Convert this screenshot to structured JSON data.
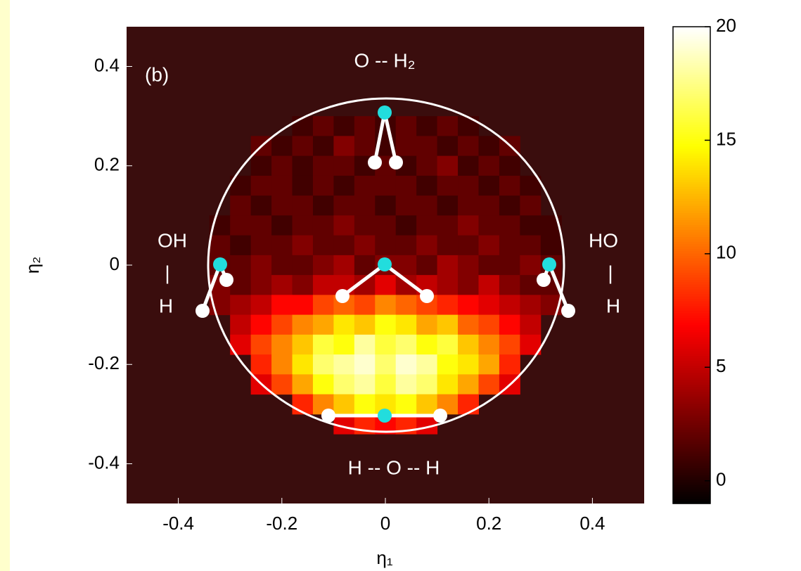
{
  "chart_data": {
    "type": "heatmap",
    "xlabel": "η₁",
    "ylabel": "η₂",
    "xlim": [
      -0.5,
      0.5
    ],
    "ylim": [
      -0.48,
      0.48
    ],
    "xticks": [
      -0.4,
      -0.2,
      0,
      0.2,
      0.4
    ],
    "yticks": [
      -0.4,
      -0.2,
      0,
      0.2,
      0.4
    ],
    "x": [
      -0.32,
      -0.28,
      -0.24,
      -0.2,
      -0.16,
      -0.12,
      -0.08,
      -0.04,
      0,
      0.04,
      0.08,
      0.12,
      0.16,
      0.2,
      0.24,
      0.28,
      0.32
    ],
    "y": [
      0.28,
      0.24,
      0.2,
      0.16,
      0.12,
      0.08,
      0.04,
      0,
      -0.04,
      -0.08,
      -0.12,
      -0.16,
      -0.2,
      -0.24,
      -0.28,
      -0.32
    ],
    "z": [
      [
        null,
        null,
        null,
        null,
        1,
        2,
        1,
        2,
        1,
        2,
        1,
        2,
        1,
        null,
        null,
        null,
        null
      ],
      [
        null,
        null,
        2,
        1,
        2,
        1,
        3,
        2,
        1,
        2,
        2,
        1,
        2,
        1,
        2,
        null,
        null
      ],
      [
        null,
        null,
        1,
        2,
        1,
        2,
        2,
        1,
        2,
        1,
        2,
        3,
        1,
        2,
        1,
        null,
        null
      ],
      [
        null,
        1,
        2,
        2,
        1,
        2,
        1,
        2,
        2,
        2,
        1,
        2,
        2,
        1,
        2,
        1,
        null
      ],
      [
        null,
        2,
        1,
        2,
        2,
        1,
        2,
        2,
        1,
        2,
        2,
        1,
        2,
        2,
        1,
        2,
        null
      ],
      [
        1,
        2,
        2,
        1,
        2,
        2,
        3,
        2,
        2,
        1,
        2,
        2,
        3,
        2,
        2,
        1,
        1
      ],
      [
        2,
        1,
        2,
        2,
        3,
        2,
        2,
        3,
        2,
        2,
        3,
        2,
        2,
        3,
        2,
        2,
        1
      ],
      [
        2,
        2,
        3,
        2,
        2,
        3,
        4,
        2,
        3,
        3,
        2,
        4,
        3,
        2,
        2,
        3,
        2
      ],
      [
        3,
        2,
        3,
        4,
        3,
        5,
        5,
        4,
        6,
        4,
        5,
        4,
        3,
        5,
        3,
        2,
        2
      ],
      [
        3,
        4,
        5,
        7,
        7,
        9,
        10,
        9,
        11,
        10,
        9,
        8,
        7,
        6,
        5,
        4,
        3
      ],
      [
        null,
        5,
        7,
        9,
        11,
        12,
        14,
        13,
        15,
        14,
        12,
        13,
        10,
        9,
        7,
        5,
        null
      ],
      [
        null,
        6,
        9,
        11,
        13,
        16,
        15,
        18,
        16,
        17,
        15,
        16,
        13,
        11,
        9,
        6,
        null
      ],
      [
        null,
        null,
        8,
        11,
        14,
        17,
        18,
        19,
        17,
        19,
        18,
        15,
        14,
        12,
        8,
        null,
        null
      ],
      [
        null,
        null,
        6,
        9,
        12,
        15,
        17,
        18,
        16,
        18,
        17,
        14,
        12,
        9,
        6,
        null,
        null
      ],
      [
        null,
        null,
        null,
        null,
        8,
        11,
        13,
        15,
        14,
        15,
        13,
        11,
        8,
        null,
        null,
        null,
        null
      ],
      [
        null,
        null,
        null,
        null,
        null,
        null,
        6,
        8,
        7,
        8,
        6,
        null,
        null,
        null,
        null,
        null,
        null
      ]
    ],
    "colormap": "hot",
    "clim": [
      -1,
      20
    ],
    "colorbar_ticks": [
      0,
      5,
      10,
      15,
      20
    ],
    "annotations": [
      "(b)",
      "O -- H₂",
      "OH",
      "|",
      "H",
      "HO",
      "|",
      "H",
      "H -- O -- H"
    ]
  }
}
